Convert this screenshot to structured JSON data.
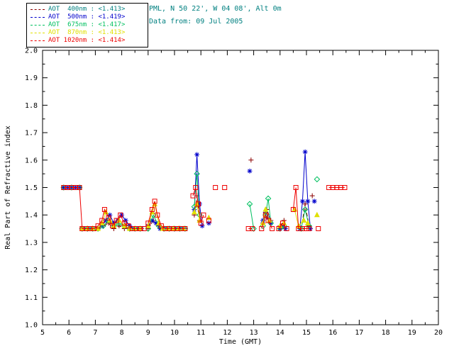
{
  "header": {
    "site": "PML, N 50 22', W 04 08', Alt 0m",
    "data_from": "Data from: 09 Jul 2005"
  },
  "colors": {
    "header_text": "#008080",
    "axis": "#000000",
    "background": "#ffffff"
  },
  "legend": {
    "items": [
      {
        "label": "AOT  400nm : <1.413>",
        "line_color": "#8b0000",
        "text_color": "#008080"
      },
      {
        "label": "AOT  500nm : <1.419>",
        "line_color": "#0000cc",
        "text_color": "#0000cc"
      },
      {
        "label": "AOT  675nm : <1.417>",
        "line_color": "#00c060",
        "text_color": "#00c060"
      },
      {
        "label": "AOT  870nm : <1.413>",
        "line_color": "#e0e000",
        "text_color": "#e0e000"
      },
      {
        "label": "AOT 1020nm : <1.414>",
        "line_color": "#ee0000",
        "text_color": "#ee0000"
      }
    ]
  },
  "chart_data": {
    "type": "line",
    "title": "",
    "xlabel": "Time (GMT)",
    "ylabel": "Real Part of Refractive index",
    "xlim": [
      5,
      20
    ],
    "ylim": [
      1.0,
      2.0
    ],
    "xtick_step": 1,
    "ytick_step": 0.1,
    "grid": false,
    "legend_position": "top-left",
    "series": [
      {
        "name": "AOT 400nm",
        "mean": "1.413",
        "color": "#8b0000",
        "marker": "plus",
        "line": "dashed",
        "points": [
          [
            6.5,
            1.35
          ],
          [
            6.7,
            1.35
          ],
          [
            6.9,
            1.35
          ],
          [
            7.1,
            1.35
          ],
          [
            7.3,
            1.36
          ],
          [
            7.5,
            1.37
          ],
          [
            7.7,
            1.35
          ],
          [
            7.9,
            1.36
          ],
          [
            8.1,
            1.35
          ],
          [
            8.3,
            1.35
          ],
          [
            8.55,
            1.35
          ],
          [
            8.75,
            1.35
          ],
          null,
          [
            9.0,
            1.35
          ],
          [
            9.2,
            1.38
          ],
          [
            9.4,
            1.36
          ],
          [
            9.6,
            1.35
          ],
          [
            9.8,
            1.35
          ],
          [
            10.0,
            1.35
          ],
          [
            10.2,
            1.35
          ],
          [
            10.4,
            1.35
          ],
          null,
          [
            10.75,
            1.4
          ],
          [
            10.85,
            1.47
          ],
          [
            10.95,
            1.38
          ],
          null,
          [
            12.9,
            1.6
          ],
          null,
          [
            13.35,
            1.37
          ],
          [
            13.5,
            1.42
          ],
          [
            13.65,
            1.38
          ],
          null,
          [
            14.0,
            1.36
          ],
          [
            14.15,
            1.38
          ],
          null,
          [
            14.8,
            1.35
          ],
          [
            14.95,
            1.44
          ],
          [
            15.1,
            1.36
          ],
          null,
          [
            15.22,
            1.47
          ]
        ]
      },
      {
        "name": "AOT 500nm",
        "mean": "1.419",
        "color": "#0000cc",
        "marker": "asterisk",
        "line": "solid",
        "points": [
          [
            5.8,
            1.5
          ],
          [
            5.95,
            1.5
          ],
          [
            6.1,
            1.5
          ],
          [
            6.25,
            1.5
          ],
          [
            6.4,
            1.5
          ],
          null,
          [
            6.5,
            1.35
          ],
          [
            6.65,
            1.35
          ],
          [
            6.8,
            1.35
          ],
          [
            6.95,
            1.35
          ],
          [
            7.1,
            1.35
          ],
          [
            7.25,
            1.36
          ],
          [
            7.4,
            1.38
          ],
          [
            7.55,
            1.4
          ],
          [
            7.7,
            1.37
          ],
          [
            7.85,
            1.38
          ],
          [
            8.0,
            1.4
          ],
          [
            8.15,
            1.38
          ],
          [
            8.3,
            1.36
          ],
          [
            8.45,
            1.35
          ],
          [
            8.6,
            1.35
          ],
          [
            8.75,
            1.35
          ],
          null,
          [
            9.0,
            1.36
          ],
          [
            9.15,
            1.38
          ],
          [
            9.3,
            1.37
          ],
          [
            9.45,
            1.35
          ],
          [
            9.6,
            1.35
          ],
          [
            9.75,
            1.35
          ],
          [
            9.9,
            1.35
          ],
          [
            10.05,
            1.35
          ],
          [
            10.2,
            1.35
          ],
          [
            10.35,
            1.35
          ],
          null,
          [
            10.75,
            1.42
          ],
          [
            10.85,
            1.62
          ],
          [
            10.95,
            1.44
          ],
          [
            11.05,
            1.36
          ],
          null,
          [
            11.3,
            1.37
          ],
          null,
          [
            12.85,
            1.56
          ],
          null,
          [
            13.35,
            1.38
          ],
          [
            13.45,
            1.41
          ],
          [
            13.55,
            1.39
          ],
          [
            13.65,
            1.37
          ],
          null,
          [
            14.0,
            1.35
          ],
          [
            14.1,
            1.36
          ],
          [
            14.2,
            1.35
          ],
          null,
          [
            14.75,
            1.35
          ],
          [
            14.85,
            1.45
          ],
          [
            14.95,
            1.63
          ],
          [
            15.05,
            1.45
          ],
          [
            15.15,
            1.35
          ],
          null,
          [
            15.3,
            1.45
          ]
        ]
      },
      {
        "name": "AOT 675nm",
        "mean": "1.417",
        "color": "#00c060",
        "marker": "diamond",
        "line": "solid",
        "points": [
          [
            5.8,
            1.5
          ],
          [
            6.1,
            1.5
          ],
          [
            6.4,
            1.5
          ],
          null,
          [
            6.5,
            1.35
          ],
          [
            6.7,
            1.35
          ],
          [
            6.9,
            1.35
          ],
          [
            7.1,
            1.35
          ],
          [
            7.3,
            1.36
          ],
          [
            7.5,
            1.38
          ],
          [
            7.7,
            1.36
          ],
          [
            7.9,
            1.37
          ],
          [
            8.1,
            1.36
          ],
          [
            8.3,
            1.35
          ],
          [
            8.5,
            1.35
          ],
          [
            8.7,
            1.35
          ],
          null,
          [
            9.0,
            1.35
          ],
          [
            9.2,
            1.4
          ],
          [
            9.4,
            1.36
          ],
          [
            9.6,
            1.35
          ],
          [
            9.8,
            1.35
          ],
          [
            10.0,
            1.35
          ],
          [
            10.2,
            1.35
          ],
          [
            10.4,
            1.35
          ],
          null,
          [
            10.75,
            1.43
          ],
          [
            10.85,
            1.55
          ],
          [
            10.95,
            1.4
          ],
          null,
          [
            12.85,
            1.44
          ],
          [
            13.0,
            1.35
          ],
          null,
          [
            13.35,
            1.36
          ],
          [
            13.45,
            1.4
          ],
          [
            13.55,
            1.46
          ],
          [
            13.65,
            1.37
          ],
          null,
          [
            14.0,
            1.35
          ],
          [
            14.15,
            1.36
          ],
          null,
          [
            14.8,
            1.35
          ],
          [
            14.95,
            1.42
          ],
          [
            15.1,
            1.36
          ],
          null,
          [
            15.4,
            1.53
          ]
        ]
      },
      {
        "name": "AOT 870nm",
        "mean": "1.413",
        "color": "#e0e000",
        "marker": "triangle",
        "line": "solid",
        "points": [
          [
            6.5,
            1.35
          ],
          [
            6.7,
            1.35
          ],
          [
            6.9,
            1.35
          ],
          [
            7.1,
            1.35
          ],
          [
            7.25,
            1.37
          ],
          [
            7.4,
            1.41
          ],
          [
            7.55,
            1.38
          ],
          [
            7.7,
            1.36
          ],
          [
            7.9,
            1.38
          ],
          [
            8.1,
            1.36
          ],
          [
            8.3,
            1.35
          ],
          [
            8.5,
            1.35
          ],
          [
            8.7,
            1.35
          ],
          null,
          [
            9.0,
            1.36
          ],
          [
            9.15,
            1.41
          ],
          [
            9.25,
            1.44
          ],
          [
            9.4,
            1.37
          ],
          [
            9.55,
            1.35
          ],
          [
            9.75,
            1.35
          ],
          [
            9.95,
            1.35
          ],
          [
            10.15,
            1.35
          ],
          [
            10.35,
            1.35
          ],
          null,
          [
            10.75,
            1.41
          ],
          [
            10.85,
            1.44
          ],
          [
            10.95,
            1.38
          ],
          null,
          [
            11.3,
            1.39
          ],
          null,
          [
            13.35,
            1.37
          ],
          [
            13.45,
            1.42
          ],
          [
            13.6,
            1.38
          ],
          null,
          [
            14.0,
            1.36
          ],
          [
            14.15,
            1.37
          ],
          null,
          [
            14.55,
            1.42
          ],
          [
            14.7,
            1.36
          ],
          [
            14.9,
            1.38
          ],
          [
            15.05,
            1.37
          ],
          null,
          [
            15.4,
            1.4
          ]
        ]
      },
      {
        "name": "AOT 1020nm",
        "mean": "1.414",
        "color": "#ee0000",
        "marker": "square",
        "line": "solid",
        "points": [
          [
            5.8,
            1.5
          ],
          [
            5.95,
            1.5
          ],
          [
            6.1,
            1.5
          ],
          [
            6.25,
            1.5
          ],
          [
            6.4,
            1.5
          ],
          [
            6.5,
            1.35
          ],
          [
            6.65,
            1.35
          ],
          [
            6.8,
            1.35
          ],
          [
            6.95,
            1.35
          ],
          [
            7.1,
            1.36
          ],
          [
            7.25,
            1.38
          ],
          [
            7.35,
            1.42
          ],
          [
            7.5,
            1.39
          ],
          [
            7.65,
            1.36
          ],
          [
            7.8,
            1.38
          ],
          [
            7.95,
            1.4
          ],
          [
            8.1,
            1.37
          ],
          [
            8.25,
            1.36
          ],
          [
            8.4,
            1.35
          ],
          [
            8.55,
            1.35
          ],
          [
            8.7,
            1.35
          ],
          [
            8.85,
            1.35
          ],
          null,
          [
            9.0,
            1.37
          ],
          [
            9.15,
            1.42
          ],
          [
            9.25,
            1.45
          ],
          [
            9.35,
            1.4
          ],
          [
            9.5,
            1.36
          ],
          [
            9.65,
            1.35
          ],
          [
            9.8,
            1.35
          ],
          [
            9.95,
            1.35
          ],
          [
            10.1,
            1.35
          ],
          [
            10.25,
            1.35
          ],
          [
            10.4,
            1.35
          ],
          null,
          [
            10.7,
            1.47
          ],
          [
            10.8,
            1.5
          ],
          [
            10.9,
            1.44
          ],
          [
            11.0,
            1.37
          ],
          [
            11.1,
            1.4
          ],
          null,
          [
            11.3,
            1.38
          ],
          null,
          [
            11.55,
            1.5
          ],
          null,
          [
            11.9,
            1.5
          ],
          null,
          [
            12.8,
            1.35
          ],
          [
            12.95,
            1.35
          ],
          null,
          [
            13.3,
            1.35
          ],
          [
            13.45,
            1.4
          ],
          [
            13.55,
            1.38
          ],
          [
            13.7,
            1.35
          ],
          null,
          [
            13.95,
            1.35
          ],
          [
            14.1,
            1.37
          ],
          [
            14.25,
            1.35
          ],
          null,
          [
            14.5,
            1.42
          ],
          [
            14.6,
            1.5
          ],
          [
            14.7,
            1.35
          ],
          [
            14.85,
            1.35
          ],
          [
            15.0,
            1.35
          ],
          [
            15.1,
            1.35
          ],
          null,
          [
            15.45,
            1.35
          ],
          null,
          [
            15.85,
            1.5
          ],
          [
            16.0,
            1.5
          ],
          [
            16.15,
            1.5
          ],
          [
            16.3,
            1.5
          ],
          [
            16.45,
            1.5
          ]
        ]
      }
    ]
  }
}
